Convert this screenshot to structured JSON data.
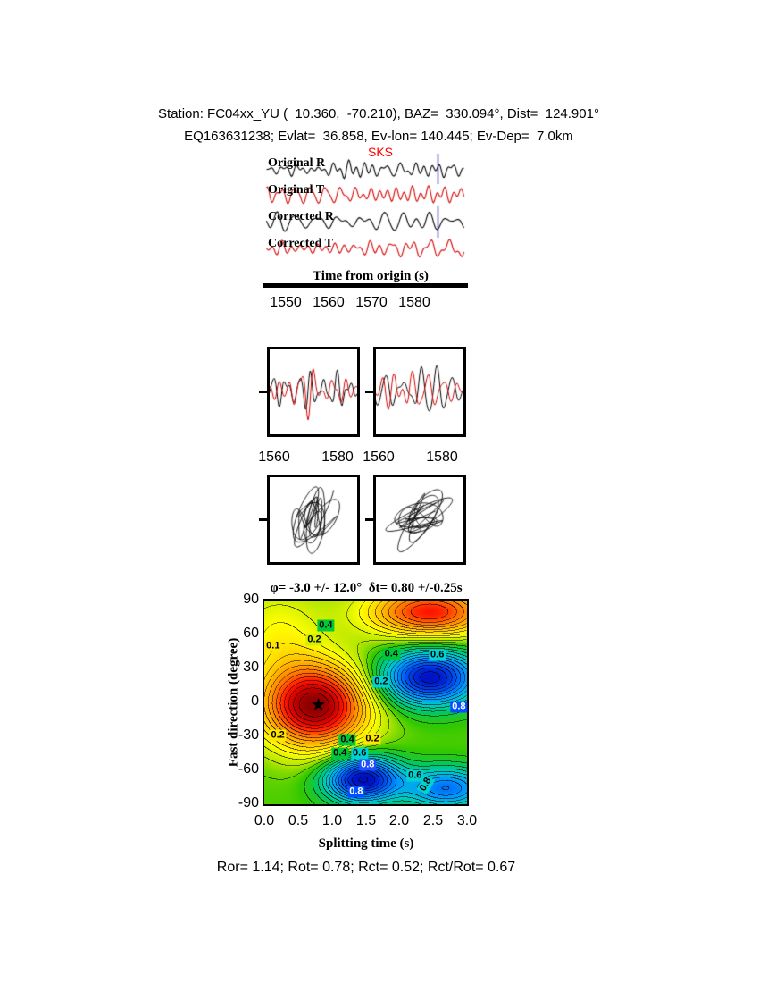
{
  "header": {
    "line1": "Station: FC04xx_YU (  10.360,  -70.210), BAZ=  330.094°, Dist=  124.901°",
    "line2": "EQ163631238; Evlat=  36.858, Ev-lon= 140.445; Ev-Dep=  7.0km"
  },
  "footer": {
    "text": "Ror= 1.14; Rot= 0.78; Rct= 0.52; Rct/Rot= 0.67"
  },
  "chart_data": [
    {
      "id": "origin-waveforms",
      "type": "line",
      "x_axis": {
        "label": "Time from origin (s)",
        "tick_labels": [
          "1550",
          "1560",
          "1570",
          "1580"
        ],
        "range_s": [
          1545,
          1592
        ]
      },
      "series": [
        {
          "name": "Original R",
          "color": "#000000"
        },
        {
          "name": "Original T",
          "color": "#d40000"
        },
        {
          "name": "Corrected R",
          "color": "#000000"
        },
        {
          "name": "Corrected T",
          "color": "#d40000"
        }
      ],
      "phase_marker": {
        "label": "SKS",
        "color": "#ff0000"
      },
      "pick_color": "#3232c8"
    },
    {
      "id": "window-waveforms",
      "type": "line",
      "colors": [
        "#000000",
        "#d40000"
      ],
      "panels": [
        {
          "name": "original-window",
          "tick_labels": [
            "1560",
            "1580"
          ]
        },
        {
          "name": "corrected-window",
          "tick_labels": [
            "1560",
            "1580"
          ]
        }
      ]
    },
    {
      "id": "particle-motion",
      "type": "curve",
      "panels": [
        {
          "name": "original",
          "orientation_deg": 72
        },
        {
          "name": "corrected",
          "orientation_deg": 38
        }
      ]
    },
    {
      "id": "misfit-surface",
      "type": "heatmap",
      "title": "φ= -3.0 +/- 12.0°  δt= 0.80 +/-0.25s",
      "xlabel": "Splitting time (s)",
      "ylabel": "Fast direction (degree)",
      "x_range": [
        0,
        3
      ],
      "y_range": [
        -90,
        90
      ],
      "xtick_labels": [
        "0.0",
        "0.5",
        "1.0",
        "1.5",
        "2.0",
        "2.5",
        "3.0"
      ],
      "ytick_labels": [
        "90",
        "60",
        "30",
        "0",
        "-30",
        "-60",
        "-90"
      ],
      "best_fit": {
        "fast_direction_deg": -3.0,
        "fast_direction_err_deg": 12.0,
        "splitting_time_s": 0.8,
        "splitting_time_err_s": 0.25
      },
      "star": {
        "t": 0.8,
        "phi": -3,
        "glyph": "★"
      },
      "labeled_levels": [
        0.1,
        0.2,
        0.4,
        0.6,
        0.8
      ],
      "colormap_stops": [
        [
          0,
          "#8c0000"
        ],
        [
          0.06,
          "#c80000"
        ],
        [
          0.12,
          "#ff1400"
        ],
        [
          0.18,
          "#ff6400"
        ],
        [
          0.24,
          "#ffa000"
        ],
        [
          0.3,
          "#ffd200"
        ],
        [
          0.36,
          "#ffff00"
        ],
        [
          0.42,
          "#b4e600"
        ],
        [
          0.47,
          "#32c800"
        ],
        [
          0.53,
          "#00c864"
        ],
        [
          0.6,
          "#00c8c8"
        ],
        [
          0.68,
          "#0096ff"
        ],
        [
          0.76,
          "#0050f0"
        ],
        [
          0.85,
          "#0014c8"
        ],
        [
          1,
          "#000078"
        ]
      ],
      "surface": {
        "base": 0.46,
        "contour_interval": 0.03,
        "features": [
          {
            "dt": 0.75,
            "dphi": -3,
            "st": 0.55,
            "sp": 26,
            "amp": -0.46
          },
          {
            "dt": 2.45,
            "dphi": 22,
            "st": 0.5,
            "sp": 17,
            "amp": 0.4
          },
          {
            "dt": 1.45,
            "dphi": -68,
            "st": 0.38,
            "sp": 14,
            "amp": 0.42
          },
          {
            "dt": 2.7,
            "dphi": -76,
            "st": 0.45,
            "sp": 13,
            "amp": 0.26
          },
          {
            "dt": 2.45,
            "dphi": 80,
            "st": 0.65,
            "sp": 16,
            "amp": -0.34
          },
          {
            "dt": 0.2,
            "dphi": 60,
            "st": 0.5,
            "sp": 30,
            "amp": -0.1
          }
        ]
      },
      "annotations": [
        {
          "t": 0.91,
          "phi": 68,
          "label": "0.4",
          "bg": "#00c83c",
          "fg": "#000000",
          "rot": 0
        },
        {
          "t": 0.74,
          "phi": 55,
          "label": "0.2",
          "bg": "#d2f000",
          "fg": "#000000",
          "rot": 0
        },
        {
          "t": 0.13,
          "phi": 50,
          "label": "0.1",
          "bg": "#ffe600",
          "fg": "#000000",
          "rot": 0
        },
        {
          "t": 1.88,
          "phi": 43,
          "label": "0.4",
          "bg": "#00c83c",
          "fg": "#000000",
          "rot": 0
        },
        {
          "t": 2.56,
          "phi": 42,
          "label": "0.6",
          "bg": "#00d2d2",
          "fg": "#000000",
          "rot": 0
        },
        {
          "t": 1.73,
          "phi": 18,
          "label": "0.2",
          "bg": "#00d2d2",
          "fg": "#000000",
          "rot": 0
        },
        {
          "t": 2.88,
          "phi": -4,
          "label": "0.8",
          "bg": "#0050ff",
          "fg": "#ffffff",
          "rot": 0
        },
        {
          "t": 0.2,
          "phi": -29,
          "label": "0.2",
          "bg": "#ffe600",
          "fg": "#000000",
          "rot": 0
        },
        {
          "t": 1.23,
          "phi": -33,
          "label": "0.4",
          "bg": "#00c83c",
          "fg": "#000000",
          "rot": 0
        },
        {
          "t": 1.6,
          "phi": -32,
          "label": "0.2",
          "bg": "#ffe600",
          "fg": "#000000",
          "rot": 0
        },
        {
          "t": 1.12,
          "phi": -45,
          "label": "0.4",
          "bg": "#00c83c",
          "fg": "#000000",
          "rot": 0
        },
        {
          "t": 1.41,
          "phi": -45,
          "label": "0.6",
          "bg": "#00d2d2",
          "fg": "#000000",
          "rot": 0
        },
        {
          "t": 1.53,
          "phi": -55,
          "label": "0.8",
          "bg": "#1e50ff",
          "fg": "#ffffff",
          "rot": 0
        },
        {
          "t": 2.23,
          "phi": -65,
          "label": "0.6",
          "bg": "#00d2d2",
          "fg": "#000000",
          "rot": 0
        },
        {
          "t": 1.36,
          "phi": -79,
          "label": "0.8",
          "bg": "#0050ff",
          "fg": "#ffffff",
          "rot": 0
        },
        {
          "t": 2.39,
          "phi": -73,
          "label": "0.8",
          "bg": "#00d2d2",
          "fg": "#000000",
          "rot": -60
        }
      ]
    }
  ]
}
